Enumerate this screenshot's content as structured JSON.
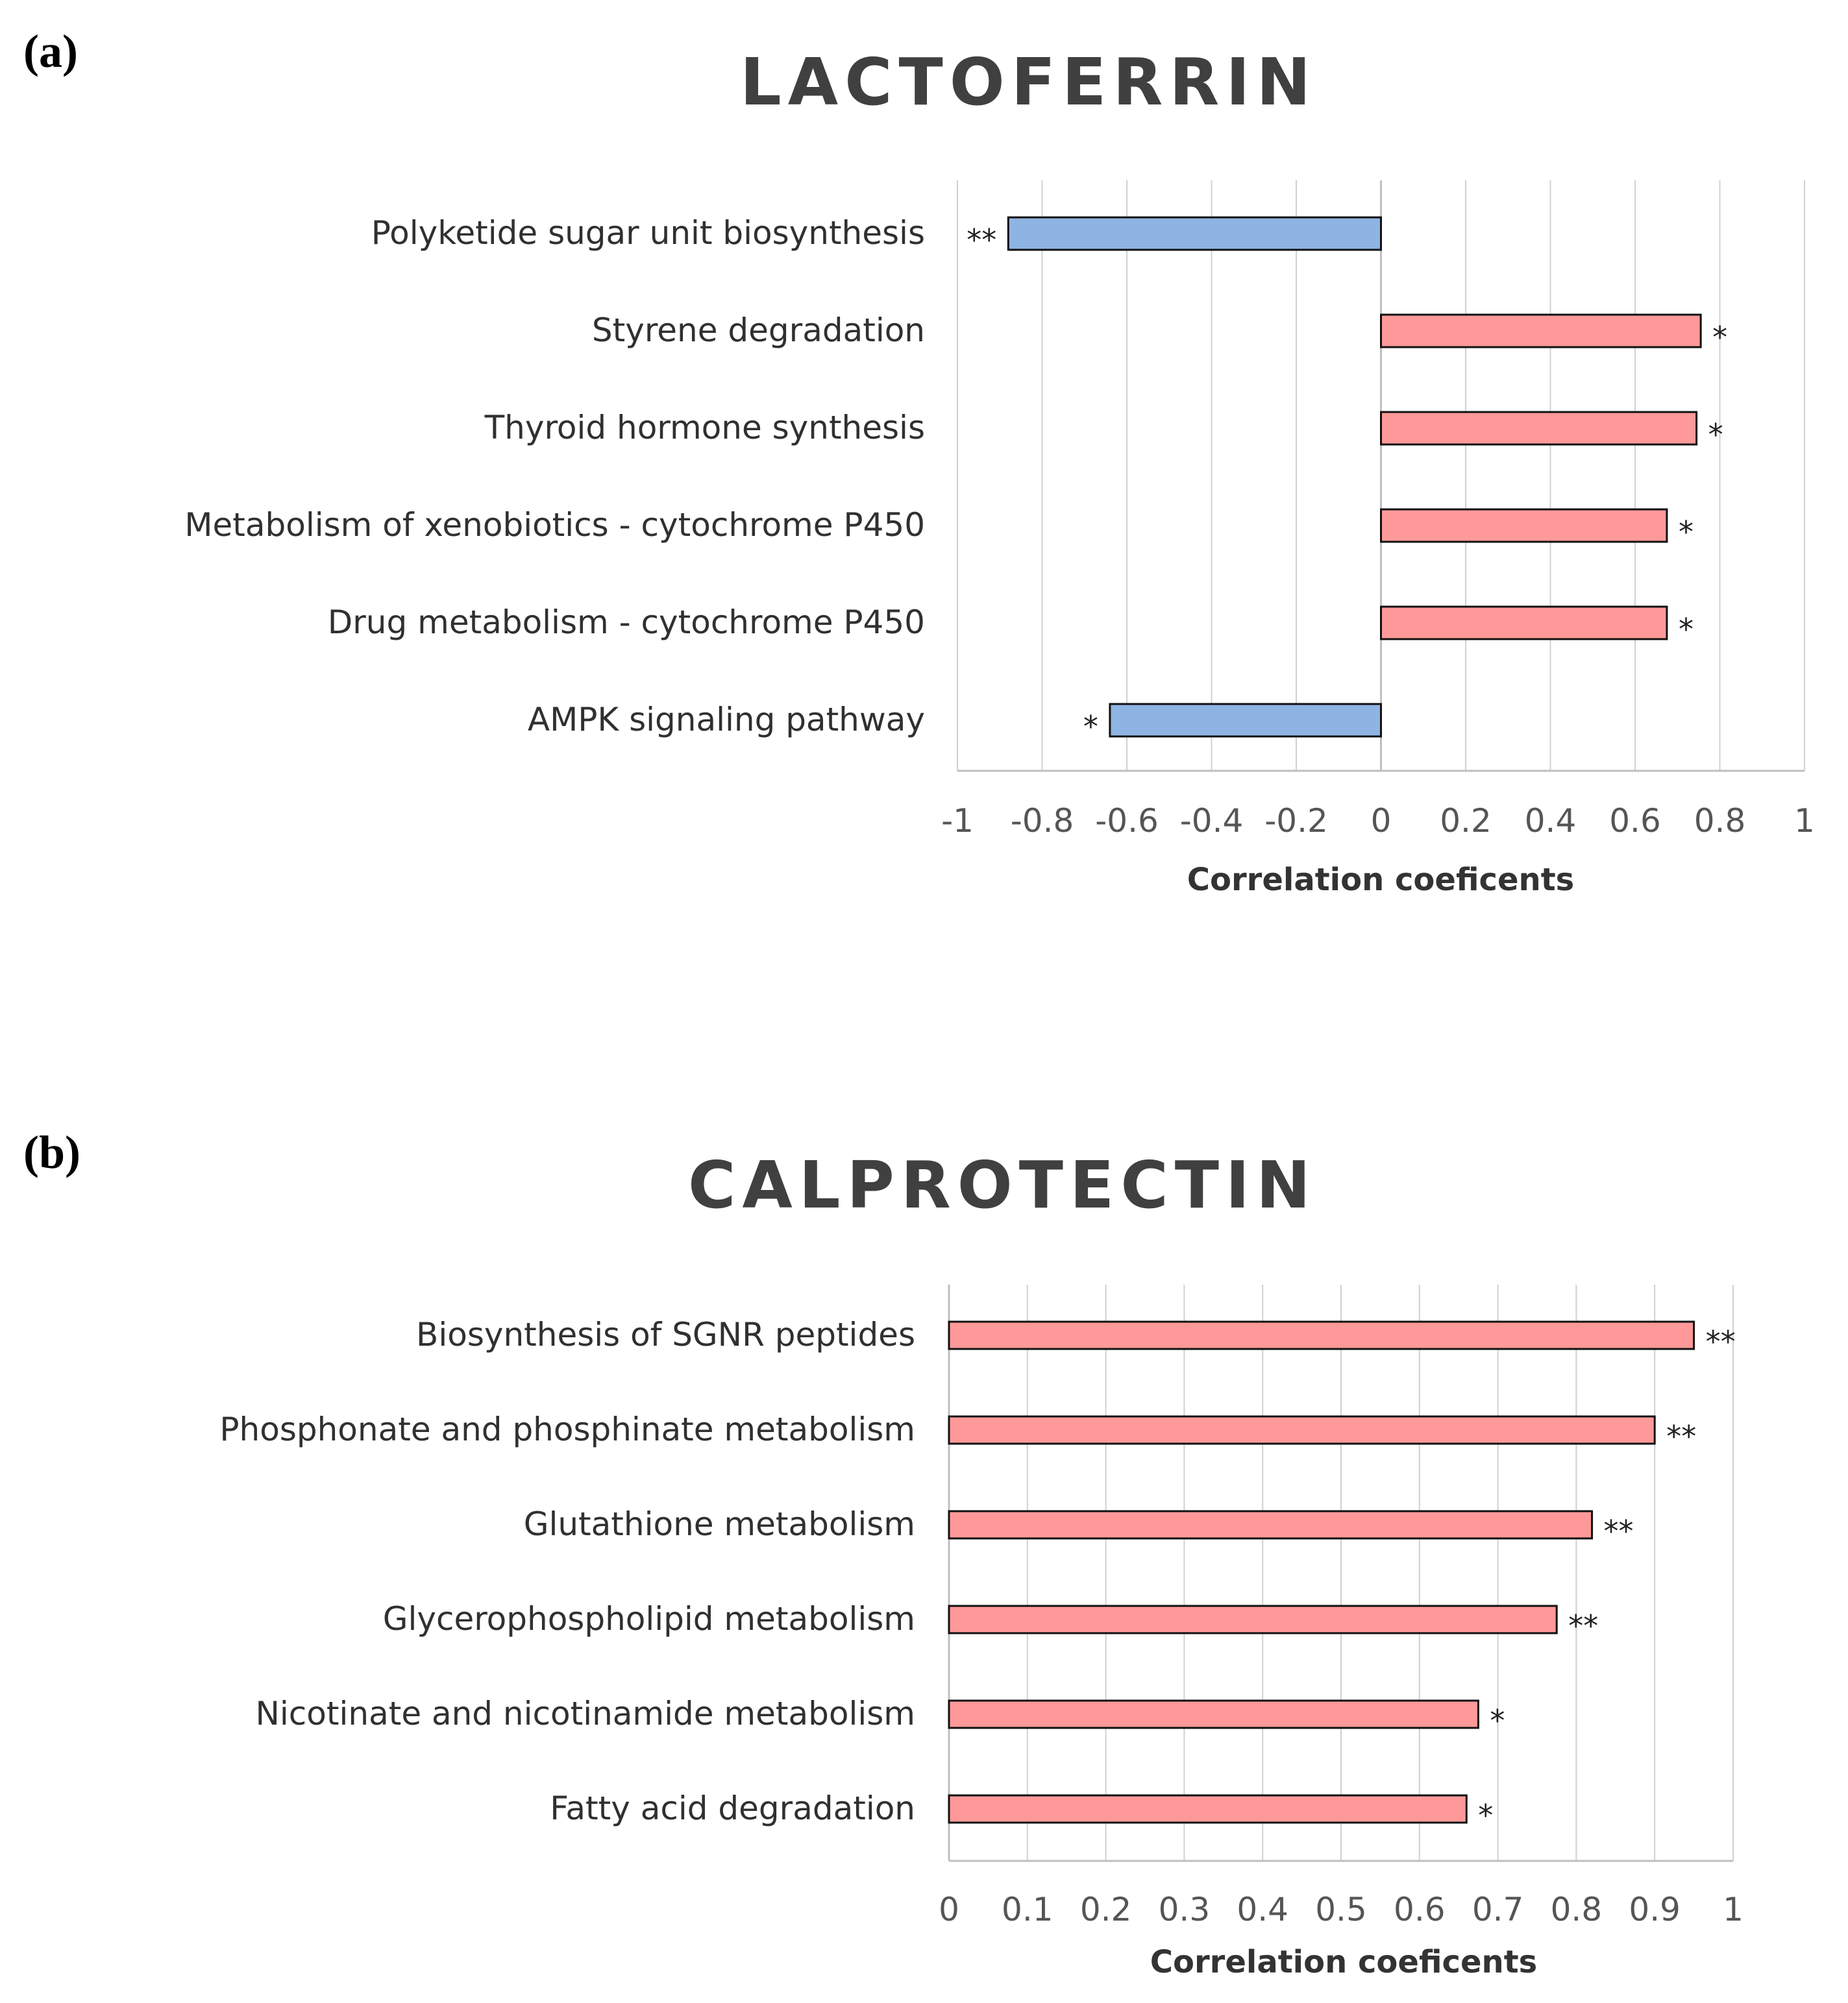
{
  "panels": {
    "a": {
      "label": "(a)"
    },
    "b": {
      "label": "(b)"
    }
  },
  "colors": {
    "positive": "#ff9999",
    "negative": "#8eb4e3",
    "grid": "#d0d0d0",
    "axis": "#bfbfbf",
    "bar_stroke": "#111111"
  },
  "chart_data": [
    {
      "type": "bar",
      "orientation": "horizontal",
      "title": "LACTOFERRIN",
      "xlabel": "Correlation  coeficents",
      "ylabel": "",
      "xlim": [
        -1,
        1
      ],
      "tick_step": 0.2,
      "ticks": [
        "-1",
        "-0.8",
        "-0.6",
        "-0.4",
        "-0.2",
        "0",
        "0.2",
        "0.4",
        "0.6",
        "0.8",
        "1"
      ],
      "categories": [
        "Polyketide sugar unit biosynthesis",
        "Styrene degradation",
        "Thyroid hormone synthesis",
        "Metabolism of xenobiotics - cytochrome P450",
        "Drug metabolism - cytochrome P450",
        "AMPK signaling pathway"
      ],
      "values": [
        -0.88,
        0.755,
        0.745,
        0.675,
        0.675,
        -0.64
      ],
      "significance": [
        "**",
        "*",
        "*",
        "*",
        "*",
        "*"
      ],
      "grid": true
    },
    {
      "type": "bar",
      "orientation": "horizontal",
      "title": "CALPROTECTIN",
      "xlabel": "Correlation  coeficents",
      "ylabel": "",
      "xlim": [
        0,
        1
      ],
      "tick_step": 0.1,
      "ticks": [
        "0",
        "0.1",
        "0.2",
        "0.3",
        "0.4",
        "0.5",
        "0.6",
        "0.7",
        "0.8",
        "0.9",
        "1"
      ],
      "categories": [
        "Biosynthesis of SGNR peptides",
        "Phosphonate and phosphinate metabolism",
        "Glutathione metabolism",
        "Glycerophospholipid metabolism",
        "Nicotinate and nicotinamide metabolism",
        "Fatty acid degradation"
      ],
      "values": [
        0.95,
        0.9,
        0.82,
        0.775,
        0.675,
        0.66
      ],
      "significance": [
        "**",
        "**",
        "**",
        "**",
        "*",
        "*"
      ],
      "grid": true
    }
  ]
}
